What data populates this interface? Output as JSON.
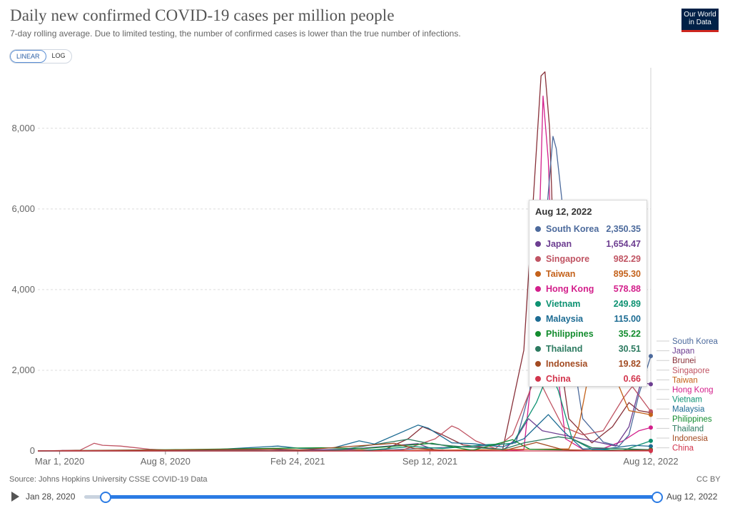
{
  "header": {
    "title": "Daily new confirmed COVID-19 cases per million people",
    "subtitle": "7-day rolling average. Due to limited testing, the number of confirmed cases is lower than the true number of infections.",
    "logo_line1": "Our World",
    "logo_line2": "in Data"
  },
  "scale_toggle": {
    "linear": "LINEAR",
    "log": "LOG",
    "active": "linear"
  },
  "footer": {
    "source": "Source: Johns Hopkins University CSSE COVID-19 Data",
    "license": "CC BY"
  },
  "timeline": {
    "start": "Jan 28, 2020",
    "end": "Aug 12, 2022",
    "range_start_fraction": 0.035,
    "range_end_fraction": 1.0
  },
  "tooltip": {
    "date": "Aug 12, 2022",
    "rows": [
      {
        "name": "South Korea",
        "value": "2,350.35",
        "color": "#4c6a9c"
      },
      {
        "name": "Japan",
        "value": "1,654.47",
        "color": "#6d3e91"
      },
      {
        "name": "Singapore",
        "value": "982.29",
        "color": "#c05463"
      },
      {
        "name": "Taiwan",
        "value": "895.30",
        "color": "#c4621b"
      },
      {
        "name": "Hong Kong",
        "value": "578.88",
        "color": "#d31f8b"
      },
      {
        "name": "Vietnam",
        "value": "249.89",
        "color": "#0d9272"
      },
      {
        "name": "Malaysia",
        "value": "115.00",
        "color": "#1d6c93"
      },
      {
        "name": "Philippines",
        "value": "35.22",
        "color": "#138c2e"
      },
      {
        "name": "Thailand",
        "value": "30.51",
        "color": "#2c7a60"
      },
      {
        "name": "Indonesia",
        "value": "19.82",
        "color": "#a34b22"
      },
      {
        "name": "China",
        "value": "0.66",
        "color": "#d2344c"
      }
    ]
  },
  "chart_data": {
    "type": "line",
    "title": "Daily new confirmed COVID-19 cases per million people",
    "subtitle": "7-day rolling average. Due to limited testing, the number of confirmed cases is lower than the true number of infections.",
    "x_range": [
      "2020-01-28",
      "2022-08-12"
    ],
    "x_ticks": [
      "Mar 1, 2020",
      "Aug 8, 2020",
      "Feb 24, 2021",
      "Sep 12, 2021",
      "Aug 12, 2022"
    ],
    "ylim": [
      0,
      9500
    ],
    "y_ticks": [
      0,
      2000,
      4000,
      6000,
      8000
    ],
    "y_tick_labels": [
      "0",
      "2,000",
      "4,000",
      "6,000",
      "8,000"
    ],
    "grid": true,
    "legend": "right-end-labels",
    "end_labels": [
      "South Korea",
      "Japan",
      "Brunei",
      "Singapore",
      "Taiwan",
      "Hong Kong",
      "Vietnam",
      "Malaysia",
      "Philippines",
      "Thailand",
      "Indonesia",
      "China"
    ],
    "series": [
      {
        "name": "Hong Kong",
        "color": "#d31f8b",
        "points": [
          [
            "2020-01-28",
            0
          ],
          [
            "2021-12-31",
            2
          ],
          [
            "2022-02-01",
            30
          ],
          [
            "2022-02-20",
            3000
          ],
          [
            "2022-03-02",
            8800
          ],
          [
            "2022-03-10",
            7200
          ],
          [
            "2022-03-20",
            2500
          ],
          [
            "2022-04-05",
            300
          ],
          [
            "2022-05-01",
            40
          ],
          [
            "2022-06-01",
            60
          ],
          [
            "2022-07-01",
            250
          ],
          [
            "2022-07-25",
            500
          ],
          [
            "2022-08-12",
            578.88
          ]
        ]
      },
      {
        "name": "Brunei",
        "color": "#883039",
        "points": [
          [
            "2020-01-28",
            0
          ],
          [
            "2021-07-01",
            0
          ],
          [
            "2021-08-10",
            300
          ],
          [
            "2021-09-01",
            600
          ],
          [
            "2021-10-01",
            400
          ],
          [
            "2021-11-01",
            150
          ],
          [
            "2021-12-31",
            30
          ],
          [
            "2022-02-01",
            2500
          ],
          [
            "2022-02-27",
            9300
          ],
          [
            "2022-03-05",
            9400
          ],
          [
            "2022-03-12",
            8000
          ],
          [
            "2022-03-22",
            3000
          ],
          [
            "2022-04-10",
            800
          ],
          [
            "2022-05-15",
            200
          ],
          [
            "2022-06-15",
            600
          ],
          [
            "2022-07-10",
            1200
          ],
          [
            "2022-07-25",
            1000
          ],
          [
            "2022-08-12",
            950
          ]
        ]
      },
      {
        "name": "South Korea",
        "color": "#4c6a9c",
        "points": [
          [
            "2020-01-28",
            0
          ],
          [
            "2020-03-01",
            0
          ],
          [
            "2020-03-05",
            12
          ],
          [
            "2020-04-01",
            2
          ],
          [
            "2020-12-20",
            20
          ],
          [
            "2021-01-10",
            10
          ],
          [
            "2021-07-20",
            30
          ],
          [
            "2021-12-15",
            140
          ],
          [
            "2022-01-20",
            200
          ],
          [
            "2022-02-10",
            1500
          ],
          [
            "2022-02-25",
            3500
          ],
          [
            "2022-03-08",
            6000
          ],
          [
            "2022-03-17",
            7800
          ],
          [
            "2022-03-22",
            7500
          ],
          [
            "2022-04-01",
            6000
          ],
          [
            "2022-04-15",
            2500
          ],
          [
            "2022-05-01",
            800
          ],
          [
            "2022-06-01",
            220
          ],
          [
            "2022-06-25",
            120
          ],
          [
            "2022-07-10",
            400
          ],
          [
            "2022-07-25",
            1400
          ],
          [
            "2022-08-12",
            2350.35
          ]
        ]
      },
      {
        "name": "Singapore",
        "color": "#c05463",
        "points": [
          [
            "2020-01-28",
            0
          ],
          [
            "2020-04-01",
            20
          ],
          [
            "2020-04-22",
            190
          ],
          [
            "2020-05-05",
            140
          ],
          [
            "2020-06-01",
            120
          ],
          [
            "2020-07-15",
            40
          ],
          [
            "2020-09-01",
            5
          ],
          [
            "2021-08-01",
            20
          ],
          [
            "2021-09-20",
            300
          ],
          [
            "2021-10-15",
            620
          ],
          [
            "2021-10-25",
            550
          ],
          [
            "2021-11-20",
            250
          ],
          [
            "2021-12-20",
            60
          ],
          [
            "2022-01-15",
            400
          ],
          [
            "2022-02-20",
            1900
          ],
          [
            "2022-03-10",
            1300
          ],
          [
            "2022-04-01",
            600
          ],
          [
            "2022-05-01",
            400
          ],
          [
            "2022-06-01",
            500
          ],
          [
            "2022-07-01",
            1300
          ],
          [
            "2022-07-15",
            1600
          ],
          [
            "2022-08-12",
            982.29
          ]
        ]
      },
      {
        "name": "Japan",
        "color": "#6d3e91",
        "points": [
          [
            "2020-01-28",
            0
          ],
          [
            "2020-04-15",
            3
          ],
          [
            "2020-08-05",
            10
          ],
          [
            "2021-01-12",
            50
          ],
          [
            "2021-02-10",
            10
          ],
          [
            "2021-05-15",
            45
          ],
          [
            "2021-08-25",
            180
          ],
          [
            "2021-09-20",
            20
          ],
          [
            "2021-12-31",
            2
          ],
          [
            "2022-01-20",
            300
          ],
          [
            "2022-02-08",
            800
          ],
          [
            "2022-03-01",
            500
          ],
          [
            "2022-04-15",
            350
          ],
          [
            "2022-05-15",
            250
          ],
          [
            "2022-06-20",
            120
          ],
          [
            "2022-07-10",
            600
          ],
          [
            "2022-07-28",
            1700
          ],
          [
            "2022-08-12",
            1654.47
          ]
        ]
      },
      {
        "name": "Taiwan",
        "color": "#c4621b",
        "points": [
          [
            "2020-01-28",
            0
          ],
          [
            "2021-05-10",
            0
          ],
          [
            "2021-05-28",
            25
          ],
          [
            "2021-06-30",
            5
          ],
          [
            "2022-04-10",
            50
          ],
          [
            "2022-04-25",
            600
          ],
          [
            "2022-05-10",
            1900
          ],
          [
            "2022-05-25",
            3400
          ],
          [
            "2022-06-05",
            3200
          ],
          [
            "2022-06-20",
            1800
          ],
          [
            "2022-07-10",
            1000
          ],
          [
            "2022-08-12",
            895.3
          ]
        ]
      },
      {
        "name": "Vietnam",
        "color": "#0d9272",
        "points": [
          [
            "2020-01-28",
            0
          ],
          [
            "2021-06-01",
            2
          ],
          [
            "2021-08-15",
            110
          ],
          [
            "2021-10-01",
            60
          ],
          [
            "2021-12-10",
            160
          ],
          [
            "2022-01-15",
            180
          ],
          [
            "2022-02-20",
            1200
          ],
          [
            "2022-03-12",
            2000
          ],
          [
            "2022-03-25",
            1500
          ],
          [
            "2022-04-15",
            300
          ],
          [
            "2022-05-15",
            40
          ],
          [
            "2022-07-01",
            15
          ],
          [
            "2022-08-12",
            249.89
          ]
        ]
      },
      {
        "name": "Malaysia",
        "color": "#1d6c93",
        "points": [
          [
            "2020-01-28",
            0
          ],
          [
            "2020-10-01",
            15
          ],
          [
            "2021-01-25",
            120
          ],
          [
            "2021-03-01",
            60
          ],
          [
            "2021-04-20",
            80
          ],
          [
            "2021-05-28",
            250
          ],
          [
            "2021-06-20",
            170
          ],
          [
            "2021-08-25",
            640
          ],
          [
            "2021-09-10",
            560
          ],
          [
            "2021-10-15",
            200
          ],
          [
            "2021-11-15",
            180
          ],
          [
            "2021-12-31",
            100
          ],
          [
            "2022-02-01",
            300
          ],
          [
            "2022-03-10",
            900
          ],
          [
            "2022-04-01",
            500
          ],
          [
            "2022-05-01",
            50
          ],
          [
            "2022-06-01",
            40
          ],
          [
            "2022-07-15",
            140
          ],
          [
            "2022-08-12",
            115
          ]
        ]
      },
      {
        "name": "Philippines",
        "color": "#138c2e",
        "points": [
          [
            "2020-01-28",
            0
          ],
          [
            "2020-08-15",
            30
          ],
          [
            "2021-04-01",
            80
          ],
          [
            "2021-06-01",
            55
          ],
          [
            "2021-09-15",
            190
          ],
          [
            "2021-11-15",
            15
          ],
          [
            "2022-01-15",
            280
          ],
          [
            "2022-02-10",
            40
          ],
          [
            "2022-06-01",
            5
          ],
          [
            "2022-08-12",
            35.22
          ]
        ]
      },
      {
        "name": "Thailand",
        "color": "#2c7a60",
        "points": [
          [
            "2020-01-28",
            0
          ],
          [
            "2021-04-01",
            2
          ],
          [
            "2021-05-01",
            30
          ],
          [
            "2021-08-10",
            290
          ],
          [
            "2021-09-15",
            170
          ],
          [
            "2021-11-01",
            100
          ],
          [
            "2021-12-31",
            40
          ],
          [
            "2022-02-01",
            200
          ],
          [
            "2022-03-25",
            350
          ],
          [
            "2022-04-15",
            300
          ],
          [
            "2022-05-15",
            80
          ],
          [
            "2022-08-12",
            30.51
          ]
        ]
      },
      {
        "name": "Indonesia",
        "color": "#a34b22",
        "points": [
          [
            "2020-01-28",
            0
          ],
          [
            "2021-01-25",
            45
          ],
          [
            "2021-03-01",
            25
          ],
          [
            "2021-07-20",
            190
          ],
          [
            "2021-08-20",
            60
          ],
          [
            "2021-10-15",
            5
          ],
          [
            "2022-01-01",
            3
          ],
          [
            "2022-02-20",
            210
          ],
          [
            "2022-04-01",
            30
          ],
          [
            "2022-06-01",
            3
          ],
          [
            "2022-08-12",
            19.82
          ]
        ]
      },
      {
        "name": "China",
        "color": "#d2344c",
        "points": [
          [
            "2020-01-28",
            0.3
          ],
          [
            "2020-02-10",
            2
          ],
          [
            "2020-03-01",
            0.2
          ],
          [
            "2022-08-12",
            0.66
          ]
        ]
      }
    ]
  }
}
